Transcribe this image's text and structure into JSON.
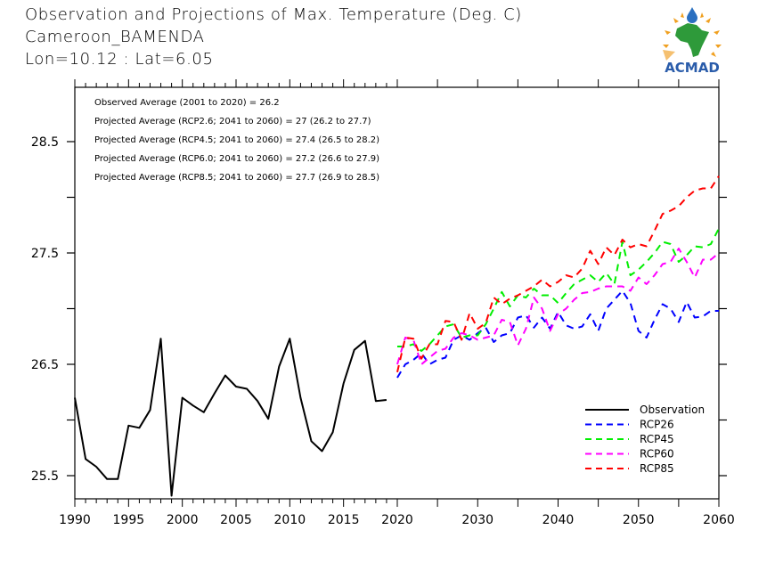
{
  "header": {
    "title": "Observation and Projections of Max. Temperature (Deg. C)",
    "station": "Cameroon_BAMENDA",
    "coords": "Lon=10.12 : Lat=6.05"
  },
  "logo": {
    "text": "ACMAD",
    "icon": "acmad-africa-logo-icon",
    "colors": {
      "africa": "#2e9a3a",
      "sun": "#f0a020",
      "drop": "#2a6fc0",
      "text": "#2a5caa"
    }
  },
  "chart_data": {
    "type": "line",
    "title": "Observation and Projections of Max. Temperature (Deg. C)",
    "xlabel": "",
    "ylabel": "",
    "ylim": [
      25.3,
      29.0
    ],
    "y_ticks": [
      25.5,
      26.0,
      26.5,
      27.0,
      27.5,
      28.0,
      28.5
    ],
    "y_tick_labels": [
      "25.5",
      "26.5",
      "27.5",
      "28.5"
    ],
    "x_ticks_obs": [
      1990,
      1995,
      2000,
      2005,
      2010,
      2015,
      2020
    ],
    "x_ticks_proj": [
      2030,
      2040,
      2050,
      2060
    ],
    "x_tick_labels": [
      "1990",
      "1995",
      "2000",
      "2005",
      "2010",
      "2015",
      "2020",
      "2030",
      "2040",
      "2050",
      "2060"
    ],
    "x_segments": [
      {
        "from": 1990,
        "to": 2020
      },
      {
        "from": 2020,
        "to": 2060
      }
    ],
    "grid": false,
    "legend_position": "bottom-right",
    "annotations": [
      "Observed Average (2001 to 2020) = 26.2",
      "Projected Average (RCP2.6; 2041 to 2060) = 27 (26.2 to 27.7)",
      "Projected Average (RCP4.5; 2041 to 2060) = 27.4 (26.5 to 28.2)",
      "Projected Average (RCP6.0; 2041 to 2060) = 27.2 (26.6 to 27.9)",
      "Projected Average (RCP8.5; 2041 to 2060) = 27.7 (26.9 to 28.5)"
    ],
    "series": [
      {
        "name": "Observation",
        "color": "#000000",
        "dash": false,
        "start_year": 1990,
        "values": [
          26.2,
          25.65,
          25.58,
          25.47,
          25.47,
          25.95,
          25.93,
          26.09,
          26.73,
          25.32,
          26.2,
          26.13,
          26.07,
          26.24,
          26.4,
          26.3,
          26.28,
          26.17,
          26.01,
          26.48,
          26.73,
          26.2,
          25.81,
          25.72,
          25.89,
          26.33,
          26.63,
          26.71,
          26.17,
          26.18
        ]
      },
      {
        "name": "RCP26",
        "color": "#0000ff",
        "dash": true,
        "start_year": 2020,
        "values": [
          26.38,
          26.5,
          26.54,
          26.6,
          26.5,
          26.54,
          26.56,
          26.72,
          26.76,
          26.72,
          26.78,
          26.83,
          26.7,
          26.76,
          26.78,
          26.92,
          26.94,
          26.83,
          26.92,
          26.82,
          26.97,
          26.85,
          26.82,
          26.84,
          26.95,
          26.8,
          27.0,
          27.08,
          27.16,
          27.05,
          26.8,
          26.74,
          26.9,
          27.04,
          27.0,
          26.88,
          27.06,
          26.92,
          26.93,
          26.98,
          26.98
        ]
      },
      {
        "name": "RCP45",
        "color": "#00ee00",
        "dash": true,
        "start_year": 2020,
        "values": [
          26.66,
          26.66,
          26.68,
          26.62,
          26.68,
          26.76,
          26.84,
          26.86,
          26.74,
          26.76,
          26.76,
          26.86,
          27.0,
          27.15,
          27.02,
          27.12,
          27.1,
          27.18,
          27.12,
          27.12,
          27.05,
          27.14,
          27.22,
          27.26,
          27.3,
          27.24,
          27.32,
          27.22,
          27.6,
          27.3,
          27.35,
          27.42,
          27.5,
          27.6,
          27.58,
          27.42,
          27.48,
          27.56,
          27.55,
          27.58,
          27.72
        ]
      },
      {
        "name": "RCP60",
        "color": "#ff00ff",
        "dash": true,
        "start_year": 2020,
        "values": [
          26.5,
          26.74,
          26.72,
          26.5,
          26.56,
          26.62,
          26.64,
          26.74,
          26.78,
          26.76,
          26.72,
          26.74,
          26.76,
          26.9,
          26.88,
          26.67,
          26.82,
          27.1,
          27.0,
          26.8,
          26.95,
          27.0,
          27.08,
          27.14,
          27.15,
          27.18,
          27.2,
          27.2,
          27.2,
          27.16,
          27.28,
          27.22,
          27.3,
          27.4,
          27.42,
          27.54,
          27.42,
          27.28,
          27.44,
          27.44,
          27.5
        ]
      },
      {
        "name": "RCP85",
        "color": "#ff0000",
        "dash": true,
        "start_year": 2020,
        "values": [
          26.43,
          26.74,
          26.73,
          26.55,
          26.68,
          26.68,
          26.89,
          26.88,
          26.72,
          26.96,
          26.82,
          26.87,
          27.1,
          27.04,
          27.09,
          27.12,
          27.16,
          27.2,
          27.26,
          27.2,
          27.24,
          27.3,
          27.28,
          27.36,
          27.52,
          27.4,
          27.55,
          27.48,
          27.62,
          27.55,
          27.58,
          27.56,
          27.7,
          27.85,
          27.88,
          27.92,
          28.0,
          28.06,
          28.08,
          28.08,
          28.19
        ]
      }
    ]
  }
}
